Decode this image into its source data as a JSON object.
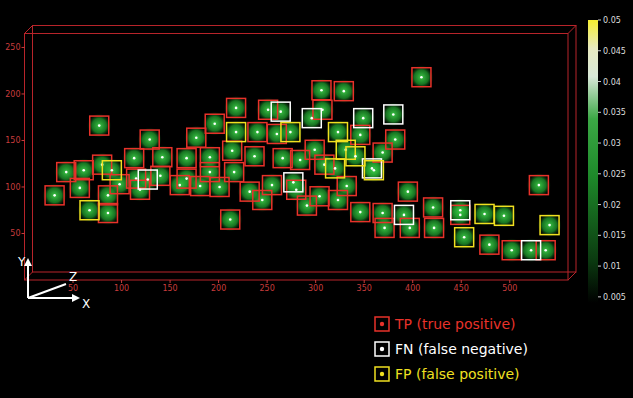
{
  "chart_data": {
    "type": "scatter",
    "x_label": "X",
    "y_label": "Y",
    "z_label": "Z",
    "xlim": [
      0,
      560
    ],
    "ylim": [
      0,
      265
    ],
    "xticks": [
      50,
      100,
      150,
      200,
      250,
      300,
      350,
      400,
      450,
      500
    ],
    "yticks": [
      50,
      100,
      150,
      200,
      250
    ],
    "grid": false,
    "legend": "bottom-right",
    "marker": "square",
    "colorbar": {
      "range": [
        0.004,
        0.05
      ],
      "ticks": [
        0.005,
        0.01,
        0.015,
        0.02,
        0.025,
        0.03,
        0.035,
        0.04,
        0.045,
        0.05
      ]
    },
    "series": [
      {
        "name": "TP (true positive)",
        "color": "#e8322a",
        "marker": "square",
        "x": [
          43,
          61,
          77,
          80,
          86,
          113,
          115,
          140,
          142,
          167,
          167,
          191,
          191,
          216,
          214,
          237,
          240,
          212,
          260,
          255,
          280,
          306,
          307,
          329,
          323,
          369,
          395,
          409,
          422,
          449,
          530,
          421,
          502,
          537,
          479,
          98,
          119,
          160,
          181,
          201,
          245,
          232,
          291,
          346,
          371,
          397,
          284,
          299,
          218,
          251,
          346,
          332,
          309,
          86,
          57,
          31,
          129,
          177,
          196,
          266,
          304,
          382,
          369
        ],
        "values": [
          116,
          118,
          166,
          124,
          72,
          131,
          109,
          112,
          132,
          109,
          131,
          116,
          132,
          116,
          139,
          133,
          159,
          65,
          157,
          102,
          97,
          204,
          183,
          203,
          86,
          72,
          95,
          218,
          56,
          70,
          102,
          78,
          32,
          32,
          38,
          103,
          97,
          102,
          101,
          100,
          86,
          95,
          80,
          73,
          56,
          56,
          129,
          140,
          185,
          183,
          156,
          101,
          124,
          91,
          99,
          91,
          151,
          153,
          168,
          131,
          90,
          151,
          137
        ]
      },
      {
        "name": "FN (false negative)",
        "color": "#ffffff",
        "marker": "square",
        "x": [
          264,
          296,
          349,
          380,
          358,
          391,
          449,
          522,
          127,
          277
        ],
        "values": [
          181,
          174,
          174,
          178,
          120,
          70,
          75,
          32,
          108,
          105
        ]
      },
      {
        "name": "FP (false positive)",
        "color": "#f0e020",
        "marker": "square",
        "x": [
          67,
          218,
          274,
          323,
          331,
          341,
          320,
          360,
          474,
          494,
          453,
          541,
          90
        ],
        "values": [
          75,
          159,
          159,
          159,
          140,
          133,
          120,
          118,
          71,
          69,
          46,
          59,
          118
        ]
      }
    ]
  }
}
